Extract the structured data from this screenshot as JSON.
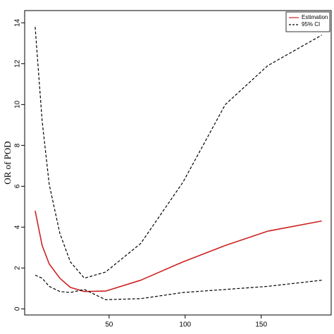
{
  "chart_data": {
    "type": "line",
    "y_label": "OR of POD",
    "x": [
      1.4,
      6,
      10.6,
      17.6,
      24.5,
      33.8,
      47.7,
      70.8,
      98.6,
      126.4,
      154.2,
      189.8
    ],
    "series": [
      {
        "name": "Estimation",
        "color": "#cc2222",
        "dash": false,
        "values": [
          4.8,
          3.1,
          2.2,
          1.5,
          1.05,
          0.85,
          0.87,
          1.4,
          2.3,
          3.1,
          3.8,
          4.3
        ]
      },
      {
        "name": "95% CI",
        "color": "#000000",
        "dash": true,
        "values": [
          13.8,
          9.2,
          6.1,
          3.7,
          2.3,
          1.5,
          1.8,
          3.2,
          6.2,
          10.0,
          11.9,
          13.4
        ]
      },
      {
        "name": null,
        "color": "#000000",
        "dash": true,
        "values": [
          1.65,
          1.5,
          1.1,
          0.85,
          0.8,
          0.95,
          0.45,
          0.5,
          0.8,
          0.95,
          1.1,
          1.4
        ]
      }
    ],
    "xlim": [
      -5.5,
      196
    ],
    "xticks": [
      50,
      100,
      150
    ],
    "ylim": [
      -0.3,
      14.6
    ],
    "yticks": [
      0,
      2,
      4,
      6,
      8,
      10,
      12,
      14
    ],
    "legend": "top-right"
  }
}
